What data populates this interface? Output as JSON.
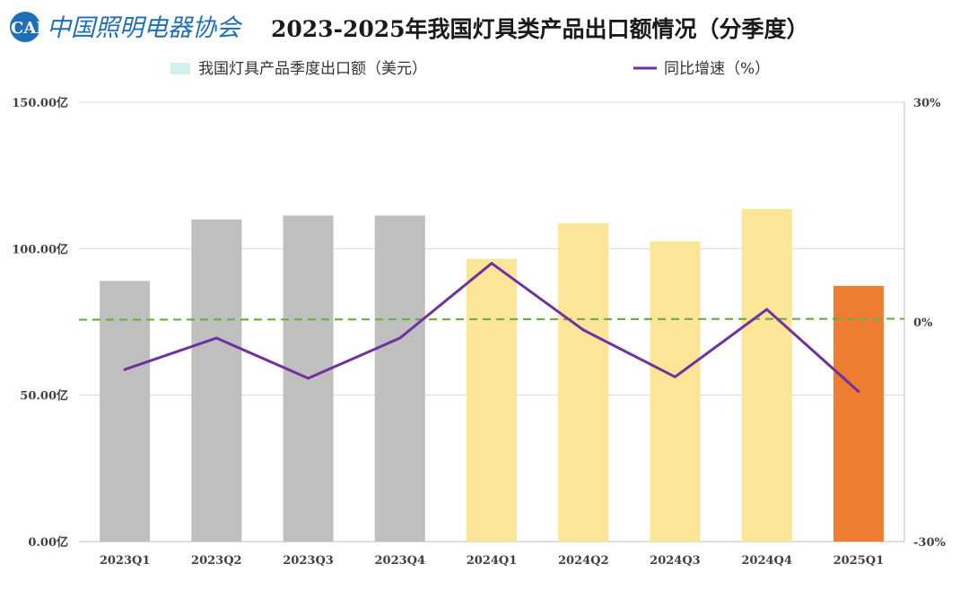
{
  "logo": {
    "mark_text": "CALI",
    "org_name": "中国照明电器协会"
  },
  "chart_data": {
    "type": "bar",
    "title": "2023-2025年我国灯具类产品出口额情况（分季度）",
    "categories": [
      "2023Q1",
      "2023Q2",
      "2023Q3",
      "2023Q4",
      "2024Q1",
      "2024Q2",
      "2024Q3",
      "2024Q4",
      "2025Q1"
    ],
    "series": [
      {
        "name": "我国灯具产品季度出口额（美元）",
        "kind": "bar",
        "axis": "left",
        "values": [
          89,
          110,
          111.3,
          111.3,
          96.5,
          108.7,
          102.5,
          113.6,
          87.3
        ],
        "colors": [
          "#bfbfbf",
          "#bfbfbf",
          "#bfbfbf",
          "#bfbfbf",
          "#fde597",
          "#fde597",
          "#fde597",
          "#fde597",
          "#ed7d31"
        ]
      },
      {
        "name": "同比增速（%）",
        "kind": "line",
        "axis": "right",
        "color": "#7030a0",
        "values": [
          -6.5,
          -2.2,
          -7.7,
          -2.2,
          8,
          -1.1,
          -7.5,
          1.7,
          -9.5
        ]
      }
    ],
    "reference_line": {
      "axis": "right",
      "value": 0.3,
      "color": "#70ad47",
      "style": "dashed"
    },
    "y_left": {
      "range": [
        0,
        150
      ],
      "ticks": [
        0,
        50,
        100,
        150
      ],
      "tick_labels": [
        "0.00亿",
        "50.00亿",
        "100.00亿",
        "150.00亿"
      ]
    },
    "y_right": {
      "range": [
        -30,
        30
      ],
      "ticks": [
        -30,
        0,
        30
      ],
      "tick_labels": [
        "-30%",
        "0%",
        "30%"
      ]
    },
    "legend": {
      "placement": "top",
      "bar_swatch_color": "#d4f0ec"
    },
    "grid": true,
    "grid_color": "#d9d9d9"
  }
}
